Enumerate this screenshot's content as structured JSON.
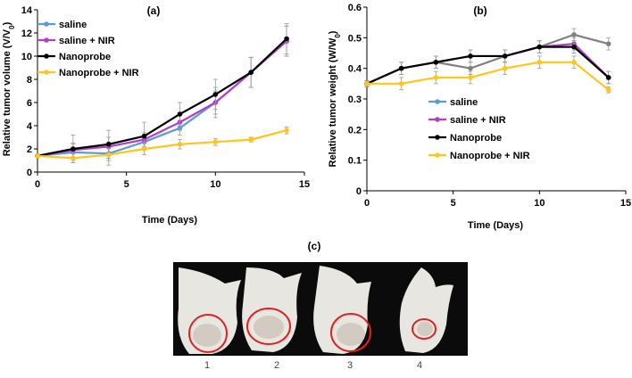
{
  "colors": {
    "saline": "#5b9bd5",
    "saline_nir": "#b23ec9",
    "nanoprobe": "#000000",
    "nanoprobe_nir": "#ffc51a",
    "gray_series": "#808080",
    "circle": "#e02020",
    "photo_bg": "#0b0b0b",
    "mouse": "#e8e6e0"
  },
  "chart_data": [
    {
      "type": "line",
      "panel_label": "(a)",
      "xlabel": "Time (Days)",
      "ylabel_main": "Relative tumor volume (V/V",
      "ylabel_sub": "0",
      "ylabel_close": ")",
      "xlim": [
        0,
        15
      ],
      "ylim": [
        0,
        14
      ],
      "xticks": [
        "0",
        "5",
        "10",
        "15"
      ],
      "xtick_values": [
        0,
        5,
        10,
        15
      ],
      "yticks": [
        "0",
        "2",
        "4",
        "6",
        "8",
        "10",
        "12",
        "14"
      ],
      "ytick_values": [
        0,
        2,
        4,
        6,
        8,
        10,
        12,
        14
      ],
      "legend_position": "top-left",
      "series": [
        {
          "name": "saline",
          "color_key": "saline",
          "x": [
            0,
            2,
            4,
            6,
            8,
            10,
            12,
            14
          ],
          "values": [
            1.4,
            1.7,
            1.6,
            2.6,
            3.8,
            6.0,
            8.6,
            11.3
          ],
          "errors": [
            0.0,
            0.7,
            1.0,
            0.6,
            0.6,
            1.3,
            1.3,
            1.3
          ]
        },
        {
          "name": "saline + NIR",
          "color_key": "saline_nir",
          "x": [
            0,
            2,
            4,
            6,
            8,
            10,
            12,
            14
          ],
          "values": [
            1.4,
            1.9,
            2.2,
            2.8,
            4.3,
            6.0,
            8.6,
            11.3
          ],
          "errors": [
            0.0,
            0.6,
            0.8,
            0.6,
            0.7,
            1.0,
            1.3,
            1.3
          ]
        },
        {
          "name": "Nanoprobe",
          "color_key": "nanoprobe",
          "x": [
            0,
            2,
            4,
            6,
            8,
            10,
            12,
            14
          ],
          "values": [
            1.4,
            2.0,
            2.4,
            3.1,
            5.0,
            6.7,
            8.6,
            11.5
          ],
          "errors": [
            0.0,
            1.2,
            1.2,
            1.2,
            1.0,
            1.3,
            1.3,
            1.3
          ]
        },
        {
          "name": "Nanoprobe + NIR",
          "color_key": "nanoprobe_nir",
          "x": [
            0,
            2,
            4,
            6,
            8,
            10,
            12,
            14
          ],
          "values": [
            1.4,
            1.2,
            1.5,
            2.0,
            2.4,
            2.6,
            2.8,
            3.6
          ],
          "errors": [
            0.0,
            0.4,
            0.5,
            0.5,
            0.4,
            0.3,
            0.2,
            0.3
          ]
        }
      ]
    },
    {
      "type": "line",
      "panel_label": "(b)",
      "xlabel": "Time (Days)",
      "ylabel_main": "Relative tumor weight (W/W",
      "ylabel_sub": "0",
      "ylabel_close": ")",
      "xlim": [
        0,
        15
      ],
      "ylim": [
        0,
        0.6
      ],
      "xticks": [
        "0",
        "5",
        "10",
        "15"
      ],
      "xtick_values": [
        0,
        5,
        10,
        15
      ],
      "yticks": [
        "0",
        "0.1",
        "0.2",
        "0.3",
        "0.4",
        "0.5",
        "0.6"
      ],
      "ytick_values": [
        0,
        0.1,
        0.2,
        0.3,
        0.4,
        0.5,
        0.6
      ],
      "legend_position": "lower-right",
      "series": [
        {
          "name": "saline",
          "color_key": "gray_series",
          "legend_color_key": "saline",
          "x": [
            0,
            2,
            4,
            6,
            8,
            10,
            12,
            14
          ],
          "values": [
            0.35,
            0.4,
            0.42,
            0.4,
            0.44,
            0.47,
            0.51,
            0.48
          ],
          "errors": [
            0.01,
            0.02,
            0.02,
            0.02,
            0.02,
            0.02,
            0.02,
            0.02
          ]
        },
        {
          "name": "saline + NIR",
          "color_key": "saline_nir",
          "x": [
            0,
            2,
            4,
            6,
            8,
            10,
            12,
            14
          ],
          "values": [
            0.35,
            0.4,
            0.42,
            0.44,
            0.44,
            0.47,
            0.48,
            0.37
          ],
          "errors": [
            0.01,
            0.02,
            0.02,
            0.02,
            0.02,
            0.02,
            0.02,
            0.02
          ]
        },
        {
          "name": "Nanoprobe",
          "color_key": "nanoprobe",
          "x": [
            0,
            2,
            4,
            6,
            8,
            10,
            12,
            14
          ],
          "values": [
            0.35,
            0.4,
            0.42,
            0.44,
            0.44,
            0.47,
            0.47,
            0.37
          ],
          "errors": [
            0.01,
            0.02,
            0.02,
            0.02,
            0.02,
            0.02,
            0.02,
            0.02
          ]
        },
        {
          "name": "Nanoprobe + NIR",
          "color_key": "nanoprobe_nir",
          "x": [
            0,
            2,
            4,
            6,
            8,
            10,
            12,
            14
          ],
          "values": [
            0.35,
            0.35,
            0.37,
            0.37,
            0.4,
            0.42,
            0.42,
            0.33
          ],
          "errors": [
            0.01,
            0.02,
            0.02,
            0.02,
            0.02,
            0.02,
            0.02,
            0.01
          ]
        }
      ]
    }
  ],
  "photo": {
    "panel_label": "(c)",
    "mice": [
      {
        "label": "1"
      },
      {
        "label": "2"
      },
      {
        "label": "3"
      },
      {
        "label": "4"
      }
    ]
  }
}
